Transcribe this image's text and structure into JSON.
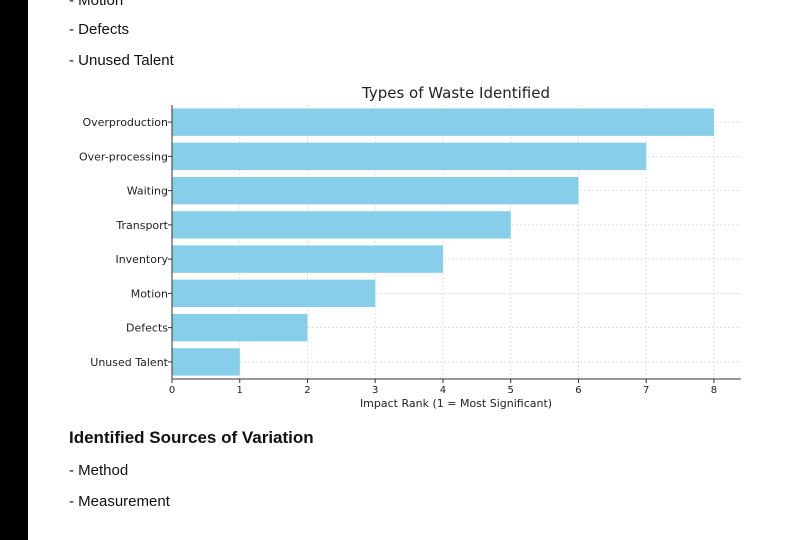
{
  "waste_list_tail": [
    "- Motion",
    "- Defects",
    "- Unused Talent"
  ],
  "variation_section": {
    "heading": "Identified Sources of Variation",
    "items": [
      "- Method",
      "- Measurement"
    ]
  },
  "colors": {
    "bar": "#87ceeb",
    "left_bar": "#000000"
  },
  "chart_data": {
    "type": "bar",
    "orientation": "horizontal",
    "title": "Types of Waste Identified",
    "xlabel": "Impact Rank (1 = Most Significant)",
    "ylabel": "",
    "categories": [
      "Overproduction",
      "Over-processing",
      "Waiting",
      "Transport",
      "Inventory",
      "Motion",
      "Defects",
      "Unused Talent"
    ],
    "values": [
      8,
      7,
      6,
      5,
      4,
      3,
      2,
      1
    ],
    "xlim": [
      0,
      8.4
    ],
    "xticks": [
      0,
      1,
      2,
      3,
      4,
      5,
      6,
      7,
      8
    ],
    "grid": true
  }
}
